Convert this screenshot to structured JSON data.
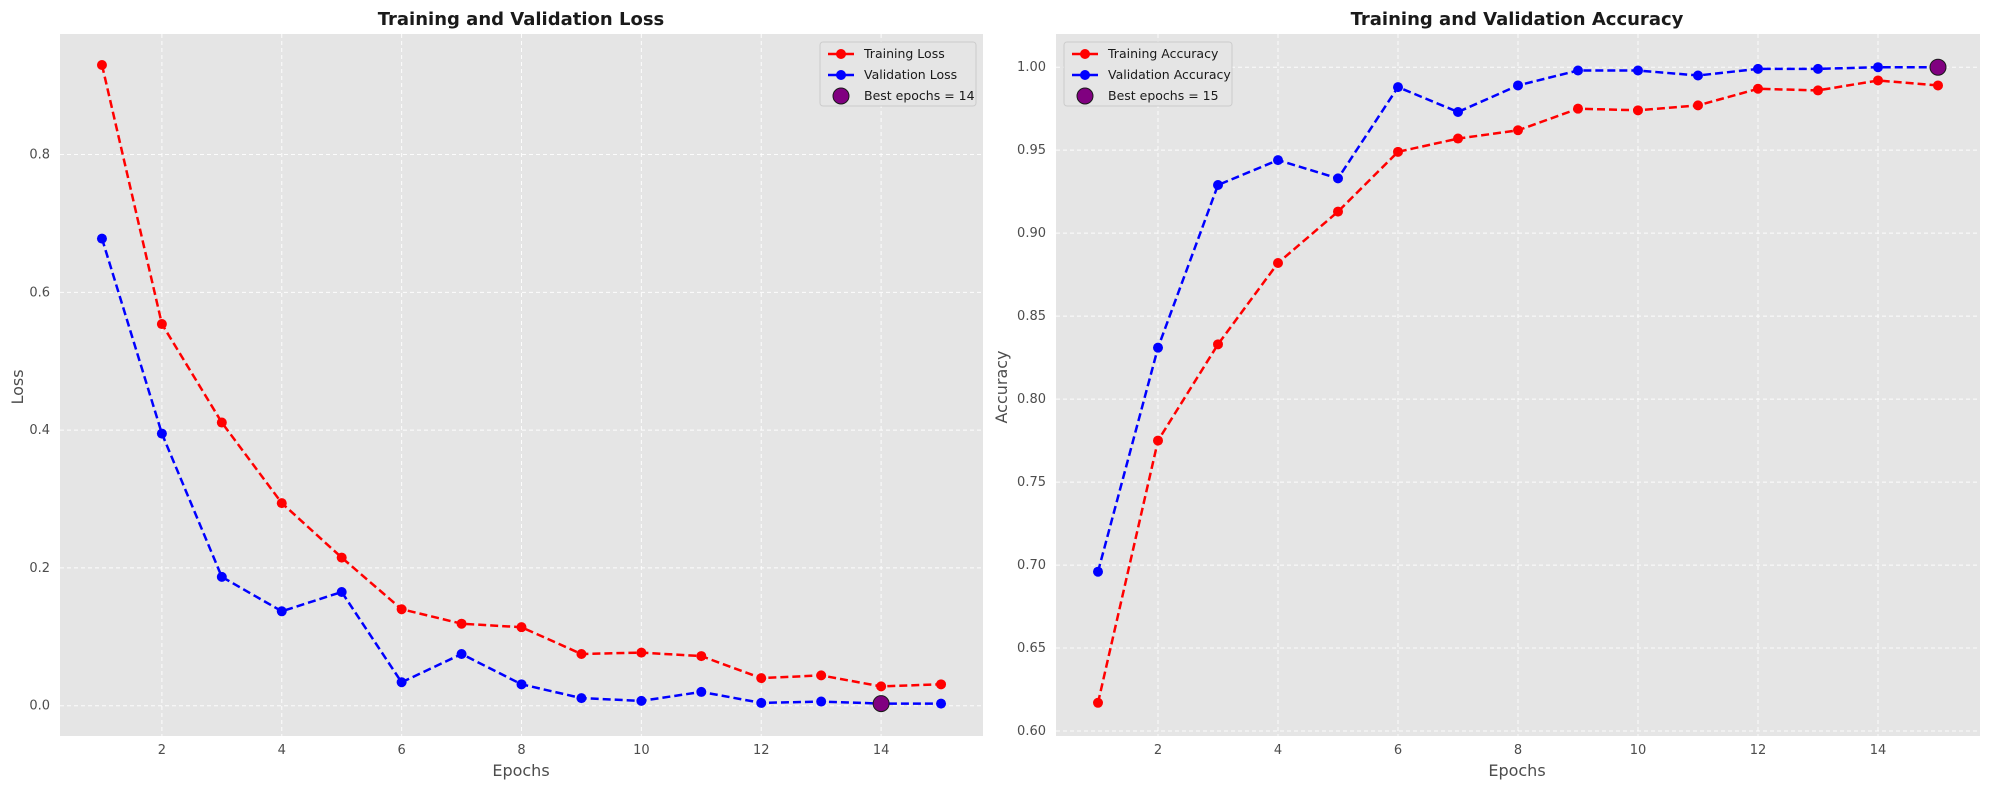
{
  "chart_data": [
    {
      "type": "line",
      "title": "Training and Validation Loss",
      "xlabel": "Epochs",
      "ylabel": "Loss",
      "xlim": [
        0.3,
        15.7
      ],
      "ylim": [
        -0.044,
        0.975
      ],
      "xticks": [
        2,
        4,
        6,
        8,
        10,
        12,
        14
      ],
      "yticks": [
        0.0,
        0.2,
        0.4,
        0.6,
        0.8
      ],
      "ytick_labels": [
        "0.0",
        "0.2",
        "0.4",
        "0.6",
        "0.8"
      ],
      "grid": true,
      "legend_position": "upper right",
      "x": [
        1,
        2,
        3,
        4,
        5,
        6,
        7,
        8,
        9,
        10,
        11,
        12,
        13,
        14,
        15
      ],
      "series": [
        {
          "name": "Training Loss",
          "color": "#ff0000",
          "style": "dashed",
          "marker": "circle",
          "values": [
            0.93,
            0.554,
            0.411,
            0.294,
            0.215,
            0.14,
            0.119,
            0.114,
            0.075,
            0.077,
            0.072,
            0.04,
            0.044,
            0.028,
            0.031
          ]
        },
        {
          "name": "Validation Loss",
          "color": "#0000ff",
          "style": "dashed",
          "marker": "circle",
          "values": [
            0.678,
            0.395,
            0.187,
            0.137,
            0.165,
            0.034,
            0.075,
            0.031,
            0.011,
            0.007,
            0.02,
            0.004,
            0.006,
            0.003,
            0.003
          ]
        }
      ],
      "best": {
        "label": "Best epochs = 14",
        "x": 14,
        "y": 0.003,
        "color": "#800080"
      }
    },
    {
      "type": "line",
      "title": "Training and Validation Accuracy",
      "xlabel": "Epochs",
      "ylabel": "Accuracy",
      "xlim": [
        0.3,
        15.7
      ],
      "ylim": [
        0.597,
        1.02
      ],
      "xticks": [
        2,
        4,
        6,
        8,
        10,
        12,
        14
      ],
      "yticks": [
        0.6,
        0.65,
        0.7,
        0.75,
        0.8,
        0.85,
        0.9,
        0.95,
        1.0
      ],
      "ytick_labels": [
        "0.60",
        "0.65",
        "0.70",
        "0.75",
        "0.80",
        "0.85",
        "0.90",
        "0.95",
        "1.00"
      ],
      "grid": true,
      "legend_position": "upper left",
      "x": [
        1,
        2,
        3,
        4,
        5,
        6,
        7,
        8,
        9,
        10,
        11,
        12,
        13,
        14,
        15
      ],
      "series": [
        {
          "name": "Training Accuracy",
          "color": "#ff0000",
          "style": "dashed",
          "marker": "circle",
          "values": [
            0.617,
            0.775,
            0.833,
            0.882,
            0.913,
            0.949,
            0.957,
            0.962,
            0.975,
            0.974,
            0.977,
            0.987,
            0.986,
            0.992,
            0.989
          ]
        },
        {
          "name": "Validation Accuracy",
          "color": "#0000ff",
          "style": "dashed",
          "marker": "circle",
          "values": [
            0.696,
            0.831,
            0.929,
            0.944,
            0.933,
            0.988,
            0.973,
            0.989,
            0.998,
            0.998,
            0.995,
            0.999,
            0.999,
            1.0,
            1.0
          ]
        }
      ],
      "best": {
        "label": "Best epochs = 15",
        "x": 15,
        "y": 1.0,
        "color": "#800080"
      }
    }
  ]
}
